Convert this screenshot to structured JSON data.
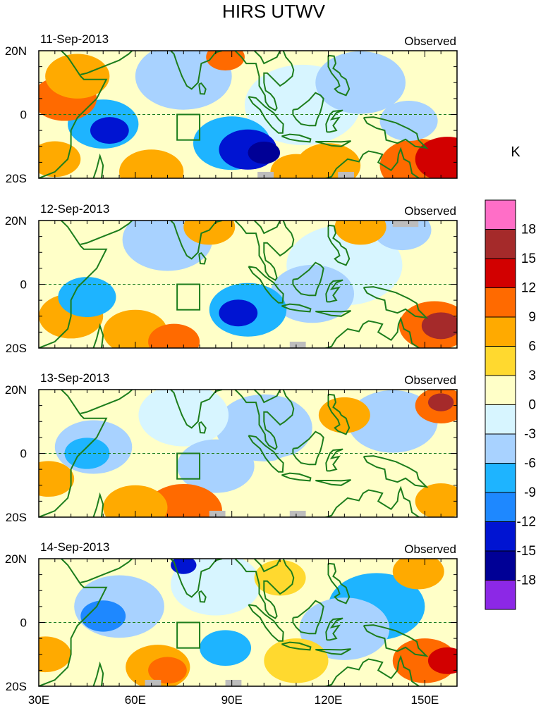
{
  "title": "HIRS UTWV",
  "chart_data": {
    "type": "heatmap",
    "title": "HIRS UTWV",
    "units": "K",
    "x_ticks": [
      "30E",
      "60E",
      "90E",
      "120E",
      "150E"
    ],
    "x_tick_values": [
      30,
      60,
      90,
      120,
      150
    ],
    "xlim": [
      30,
      160
    ],
    "y_ticks": [
      "20N",
      "0",
      "20S"
    ],
    "y_tick_values": [
      20,
      0,
      -20
    ],
    "ylim": [
      -20,
      20
    ],
    "colorbar": {
      "labels": [
        "18",
        "15",
        "12",
        "9",
        "6",
        "3",
        "0",
        "-3",
        "-6",
        "-9",
        "-12",
        "-15",
        "-18"
      ],
      "colors": [
        "#FF6EC7",
        "#A52A2A",
        "#D20000",
        "#FF6A00",
        "#FFAA00",
        "#FFD92F",
        "#FFFFC8",
        "#D7F5FF",
        "#A8D2FF",
        "#1EB4FF",
        "#1E88FF",
        "#0014D2",
        "#000096",
        "#8C28E6"
      ]
    },
    "panels": [
      {
        "date": "11-Sep-2013",
        "label": "Observed",
        "blobs": [
          {
            "lon": 52,
            "lat": -5,
            "r": 6,
            "value": -15
          },
          {
            "lon": 50,
            "lat": -3,
            "r": 11,
            "value": -9
          },
          {
            "lon": 100,
            "lat": -12,
            "r": 5,
            "value": -18
          },
          {
            "lon": 95,
            "lat": -11,
            "r": 9,
            "value": -15
          },
          {
            "lon": 90,
            "lat": -9,
            "r": 12,
            "value": -9
          },
          {
            "lon": 75,
            "lat": 12,
            "r": 15,
            "value": -6
          },
          {
            "lon": 112,
            "lat": 3,
            "r": 18,
            "value": -3
          },
          {
            "lon": 130,
            "lat": 10,
            "r": 14,
            "value": -6
          },
          {
            "lon": 145,
            "lat": -2,
            "r": 9,
            "value": -6
          },
          {
            "lon": 38,
            "lat": 5,
            "r": 10,
            "value": 9
          },
          {
            "lon": 42,
            "lat": 12,
            "r": 10,
            "value": 6
          },
          {
            "lon": 35,
            "lat": -14,
            "r": 8,
            "value": 6
          },
          {
            "lon": 65,
            "lat": -18,
            "r": 10,
            "value": 6
          },
          {
            "lon": 157,
            "lat": -14,
            "r": 10,
            "value": 12
          },
          {
            "lon": 148,
            "lat": -16,
            "r": 12,
            "value": 9
          },
          {
            "lon": 88,
            "lat": 18,
            "r": 6,
            "value": 9
          },
          {
            "lon": 120,
            "lat": -16,
            "r": 10,
            "value": 6
          },
          {
            "lon": 110,
            "lat": -18,
            "r": 8,
            "value": 6
          }
        ],
        "missing": [
          [
            98,
            -20,
            103,
            -18
          ],
          [
            123,
            -20,
            128,
            -18
          ]
        ]
      },
      {
        "date": "12-Sep-2013",
        "label": "Observed",
        "blobs": [
          {
            "lon": 92,
            "lat": -9,
            "r": 6,
            "value": -15
          },
          {
            "lon": 95,
            "lat": -8,
            "r": 12,
            "value": -9
          },
          {
            "lon": 45,
            "lat": -4,
            "r": 9,
            "value": -9
          },
          {
            "lon": 70,
            "lat": 14,
            "r": 14,
            "value": -6
          },
          {
            "lon": 115,
            "lat": -3,
            "r": 13,
            "value": -6
          },
          {
            "lon": 143,
            "lat": 17,
            "r": 9,
            "value": -6
          },
          {
            "lon": 125,
            "lat": 6,
            "r": 18,
            "value": -3
          },
          {
            "lon": 155,
            "lat": -13,
            "r": 6,
            "value": 15
          },
          {
            "lon": 153,
            "lat": -13,
            "r": 11,
            "value": 9
          },
          {
            "lon": 40,
            "lat": -10,
            "r": 10,
            "value": 6
          },
          {
            "lon": 60,
            "lat": -15,
            "r": 10,
            "value": 6
          },
          {
            "lon": 72,
            "lat": -18,
            "r": 8,
            "value": 9
          },
          {
            "lon": 83,
            "lat": 18,
            "r": 8,
            "value": 6
          },
          {
            "lon": 130,
            "lat": 18,
            "r": 8,
            "value": 6
          }
        ],
        "missing": [
          [
            108,
            -20,
            113,
            -18
          ],
          [
            140,
            18,
            148,
            20
          ]
        ]
      },
      {
        "date": "13-Sep-2013",
        "label": "Observed",
        "blobs": [
          {
            "lon": 155,
            "lat": 16,
            "r": 4,
            "value": 15
          },
          {
            "lon": 155,
            "lat": 15,
            "r": 8,
            "value": 9
          },
          {
            "lon": 45,
            "lat": 0,
            "r": 7,
            "value": -9
          },
          {
            "lon": 47,
            "lat": 2,
            "r": 12,
            "value": -6
          },
          {
            "lon": 85,
            "lat": -4,
            "r": 12,
            "value": -6
          },
          {
            "lon": 100,
            "lat": 8,
            "r": 15,
            "value": -6
          },
          {
            "lon": 140,
            "lat": 10,
            "r": 14,
            "value": -6
          },
          {
            "lon": 75,
            "lat": 12,
            "r": 14,
            "value": -3
          },
          {
            "lon": 75,
            "lat": -18,
            "r": 12,
            "value": 9
          },
          {
            "lon": 60,
            "lat": -17,
            "r": 10,
            "value": 6
          },
          {
            "lon": 33,
            "lat": -8,
            "r": 8,
            "value": 6
          },
          {
            "lon": 125,
            "lat": 12,
            "r": 8,
            "value": 6
          },
          {
            "lon": 155,
            "lat": -15,
            "r": 8,
            "value": 6
          },
          {
            "lon": 112,
            "lat": -10,
            "r": 14,
            "value": 0
          }
        ],
        "missing": [
          [
            83,
            -20,
            88,
            -18
          ],
          [
            108,
            -20,
            113,
            -18
          ]
        ]
      },
      {
        "date": "14-Sep-2013",
        "label": "Observed",
        "blobs": [
          {
            "lon": 50,
            "lat": 2,
            "r": 7,
            "value": -12
          },
          {
            "lon": 55,
            "lat": 5,
            "r": 14,
            "value": -6
          },
          {
            "lon": 135,
            "lat": 5,
            "r": 15,
            "value": -9
          },
          {
            "lon": 125,
            "lat": -2,
            "r": 14,
            "value": -6
          },
          {
            "lon": 88,
            "lat": -8,
            "r": 8,
            "value": -9
          },
          {
            "lon": 85,
            "lat": 12,
            "r": 14,
            "value": -3
          },
          {
            "lon": 75,
            "lat": 18,
            "r": 4,
            "value": -15
          },
          {
            "lon": 70,
            "lat": -15,
            "r": 6,
            "value": 9
          },
          {
            "lon": 67,
            "lat": -14,
            "r": 10,
            "value": 6
          },
          {
            "lon": 157,
            "lat": -12,
            "r": 6,
            "value": 12
          },
          {
            "lon": 150,
            "lat": -12,
            "r": 10,
            "value": 9
          },
          {
            "lon": 32,
            "lat": -10,
            "r": 8,
            "value": 6
          },
          {
            "lon": 148,
            "lat": 16,
            "r": 8,
            "value": 6
          },
          {
            "lon": 105,
            "lat": 14,
            "r": 8,
            "value": 3
          },
          {
            "lon": 110,
            "lat": -12,
            "r": 10,
            "value": 3
          }
        ],
        "missing": [
          [
            63,
            -20,
            68,
            -18
          ],
          [
            88,
            -20,
            93,
            -18
          ]
        ]
      }
    ]
  }
}
